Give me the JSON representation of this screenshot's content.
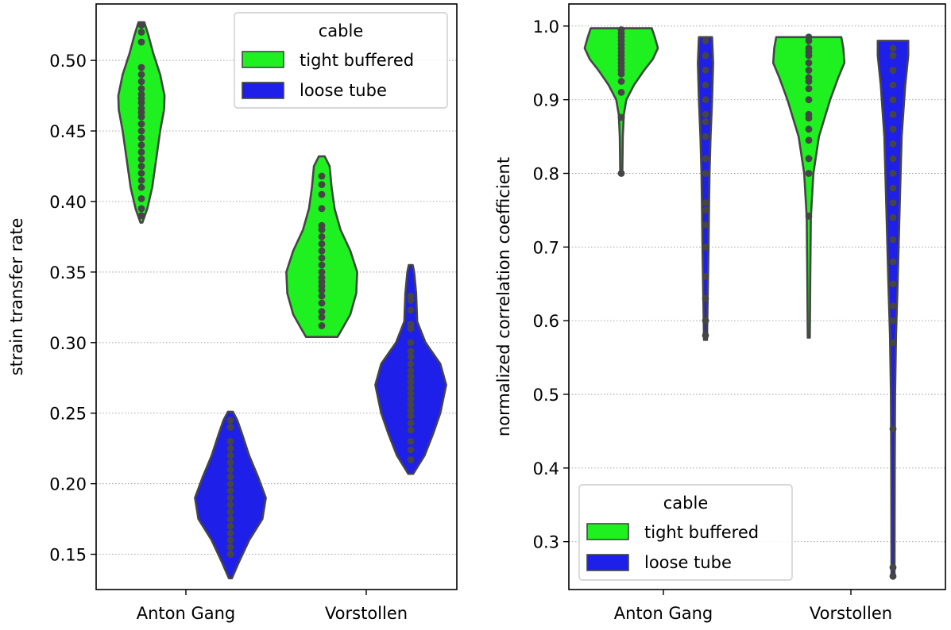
{
  "legend_title": "cable",
  "colors": {
    "tight buffered": "#1ff01f",
    "loose tube": "#1e1fe8",
    "edge": "#454545",
    "point": "#454545"
  },
  "chart_data": [
    {
      "type": "violin",
      "ylabel": "strain transfer rate",
      "categories": [
        "Anton Gang",
        "Vorstollen"
      ],
      "ylim": [
        0.125,
        0.54
      ],
      "yticks": [
        "0.15",
        "0.20",
        "0.25",
        "0.30",
        "0.35",
        "0.40",
        "0.45",
        "0.50"
      ],
      "grid": "horizontal dotted",
      "legend_position": "top-right",
      "hue_order": [
        "tight buffered",
        "loose tube"
      ],
      "groups": [
        {
          "category": "Anton Gang",
          "hue": "tight buffered",
          "min": 0.385,
          "max": 0.527,
          "profile": [
            [
              0.385,
              0.02
            ],
            [
              0.395,
              0.12
            ],
            [
              0.41,
              0.22
            ],
            [
              0.43,
              0.3
            ],
            [
              0.45,
              0.38
            ],
            [
              0.465,
              0.46
            ],
            [
              0.475,
              0.47
            ],
            [
              0.49,
              0.38
            ],
            [
              0.505,
              0.24
            ],
            [
              0.518,
              0.14
            ],
            [
              0.527,
              0.06
            ]
          ],
          "points": [
            0.39,
            0.395,
            0.402,
            0.41,
            0.415,
            0.42,
            0.425,
            0.43,
            0.435,
            0.44,
            0.445,
            0.45,
            0.455,
            0.46,
            0.463,
            0.466,
            0.47,
            0.473,
            0.476,
            0.48,
            0.485,
            0.49,
            0.495,
            0.513,
            0.52,
            0.525
          ]
        },
        {
          "category": "Anton Gang",
          "hue": "loose tube",
          "min": 0.133,
          "max": 0.251,
          "profile": [
            [
              0.133,
              0.03
            ],
            [
              0.145,
              0.18
            ],
            [
              0.16,
              0.38
            ],
            [
              0.175,
              0.65
            ],
            [
              0.19,
              0.72
            ],
            [
              0.205,
              0.56
            ],
            [
              0.22,
              0.38
            ],
            [
              0.235,
              0.24
            ],
            [
              0.245,
              0.14
            ],
            [
              0.251,
              0.05
            ]
          ],
          "points": [
            0.15,
            0.155,
            0.16,
            0.165,
            0.17,
            0.175,
            0.18,
            0.185,
            0.19,
            0.195,
            0.2,
            0.205,
            0.21,
            0.215,
            0.22,
            0.225,
            0.23,
            0.24,
            0.245
          ]
        },
        {
          "category": "Vorstollen",
          "hue": "tight buffered",
          "min": 0.304,
          "max": 0.432,
          "profile": [
            [
              0.304,
              0.32
            ],
            [
              0.31,
              0.42
            ],
            [
              0.32,
              0.58
            ],
            [
              0.335,
              0.7
            ],
            [
              0.35,
              0.72
            ],
            [
              0.365,
              0.58
            ],
            [
              0.38,
              0.38
            ],
            [
              0.395,
              0.26
            ],
            [
              0.41,
              0.2
            ],
            [
              0.425,
              0.16
            ],
            [
              0.432,
              0.06
            ]
          ],
          "points": [
            0.312,
            0.318,
            0.322,
            0.328,
            0.333,
            0.337,
            0.34,
            0.343,
            0.346,
            0.35,
            0.355,
            0.36,
            0.365,
            0.37,
            0.375,
            0.38,
            0.383,
            0.395,
            0.405,
            0.412,
            0.418
          ]
        },
        {
          "category": "Vorstollen",
          "hue": "loose tube",
          "min": 0.207,
          "max": 0.355,
          "profile": [
            [
              0.207,
              0.05
            ],
            [
              0.22,
              0.28
            ],
            [
              0.235,
              0.45
            ],
            [
              0.25,
              0.6
            ],
            [
              0.27,
              0.72
            ],
            [
              0.285,
              0.6
            ],
            [
              0.3,
              0.3
            ],
            [
              0.315,
              0.13
            ],
            [
              0.335,
              0.11
            ],
            [
              0.35,
              0.07
            ],
            [
              0.355,
              0.04
            ]
          ],
          "points": [
            0.217,
            0.224,
            0.23,
            0.238,
            0.243,
            0.248,
            0.252,
            0.256,
            0.26,
            0.264,
            0.268,
            0.272,
            0.276,
            0.28,
            0.285,
            0.29,
            0.294,
            0.3,
            0.31,
            0.313,
            0.323,
            0.33,
            0.333
          ]
        }
      ]
    },
    {
      "type": "violin",
      "ylabel": "normalized correlation coefficient",
      "categories": [
        "Anton Gang",
        "Vorstollen"
      ],
      "ylim": [
        0.235,
        1.03
      ],
      "yticks": [
        "0.3",
        "0.4",
        "0.5",
        "0.6",
        "0.7",
        "0.8",
        "0.9",
        "1.0"
      ],
      "grid": "horizontal dotted",
      "legend_position": "lower-left",
      "hue_order": [
        "tight buffered",
        "loose tube"
      ],
      "groups": [
        {
          "category": "Anton Gang",
          "hue": "tight buffered",
          "min": 0.8,
          "max": 0.997,
          "profile": [
            [
              0.8,
              0.02
            ],
            [
              0.85,
              0.03
            ],
            [
              0.88,
              0.05
            ],
            [
              0.9,
              0.1
            ],
            [
              0.92,
              0.25
            ],
            [
              0.94,
              0.45
            ],
            [
              0.955,
              0.62
            ],
            [
              0.97,
              0.72
            ],
            [
              0.985,
              0.66
            ],
            [
              0.997,
              0.6
            ]
          ],
          "points": [
            0.8,
            0.876,
            0.91,
            0.925,
            0.935,
            0.94,
            0.945,
            0.95,
            0.955,
            0.96,
            0.965,
            0.97,
            0.975,
            0.98,
            0.985,
            0.99,
            0.995
          ]
        },
        {
          "category": "Anton Gang",
          "hue": "loose tube",
          "min": 0.574,
          "max": 0.985,
          "profile": [
            [
              0.574,
              0.03
            ],
            [
              0.62,
              0.04
            ],
            [
              0.7,
              0.06
            ],
            [
              0.76,
              0.07
            ],
            [
              0.8,
              0.08
            ],
            [
              0.85,
              0.1
            ],
            [
              0.9,
              0.13
            ],
            [
              0.95,
              0.15
            ],
            [
              0.985,
              0.13
            ]
          ],
          "points": [
            0.58,
            0.6,
            0.63,
            0.66,
            0.7,
            0.73,
            0.75,
            0.76,
            0.8,
            0.82,
            0.85,
            0.87,
            0.88,
            0.9,
            0.92,
            0.94,
            0.96,
            0.98
          ]
        },
        {
          "category": "Vorstollen",
          "hue": "tight buffered",
          "min": 0.577,
          "max": 0.985,
          "profile": [
            [
              0.577,
              0.02
            ],
            [
              0.66,
              0.03
            ],
            [
              0.74,
              0.04
            ],
            [
              0.8,
              0.09
            ],
            [
              0.85,
              0.2
            ],
            [
              0.9,
              0.42
            ],
            [
              0.93,
              0.58
            ],
            [
              0.95,
              0.7
            ],
            [
              0.97,
              0.68
            ],
            [
              0.985,
              0.64
            ]
          ],
          "points": [
            0.742,
            0.8,
            0.82,
            0.845,
            0.86,
            0.875,
            0.88,
            0.9,
            0.915,
            0.925,
            0.93,
            0.94,
            0.95,
            0.96,
            0.965,
            0.97,
            0.98,
            0.985
          ]
        },
        {
          "category": "Vorstollen",
          "hue": "loose tube",
          "min": 0.253,
          "max": 0.98,
          "profile": [
            [
              0.253,
              0.03
            ],
            [
              0.4,
              0.035
            ],
            [
              0.5,
              0.04
            ],
            [
              0.58,
              0.06
            ],
            [
              0.65,
              0.09
            ],
            [
              0.75,
              0.13
            ],
            [
              0.85,
              0.17
            ],
            [
              0.92,
              0.24
            ],
            [
              0.96,
              0.3
            ],
            [
              0.98,
              0.3
            ]
          ],
          "points": [
            0.253,
            0.265,
            0.453,
            0.57,
            0.6,
            0.62,
            0.65,
            0.68,
            0.71,
            0.74,
            0.76,
            0.78,
            0.8,
            0.82,
            0.84,
            0.86,
            0.88,
            0.9,
            0.92,
            0.94,
            0.96,
            0.97
          ]
        }
      ]
    }
  ]
}
